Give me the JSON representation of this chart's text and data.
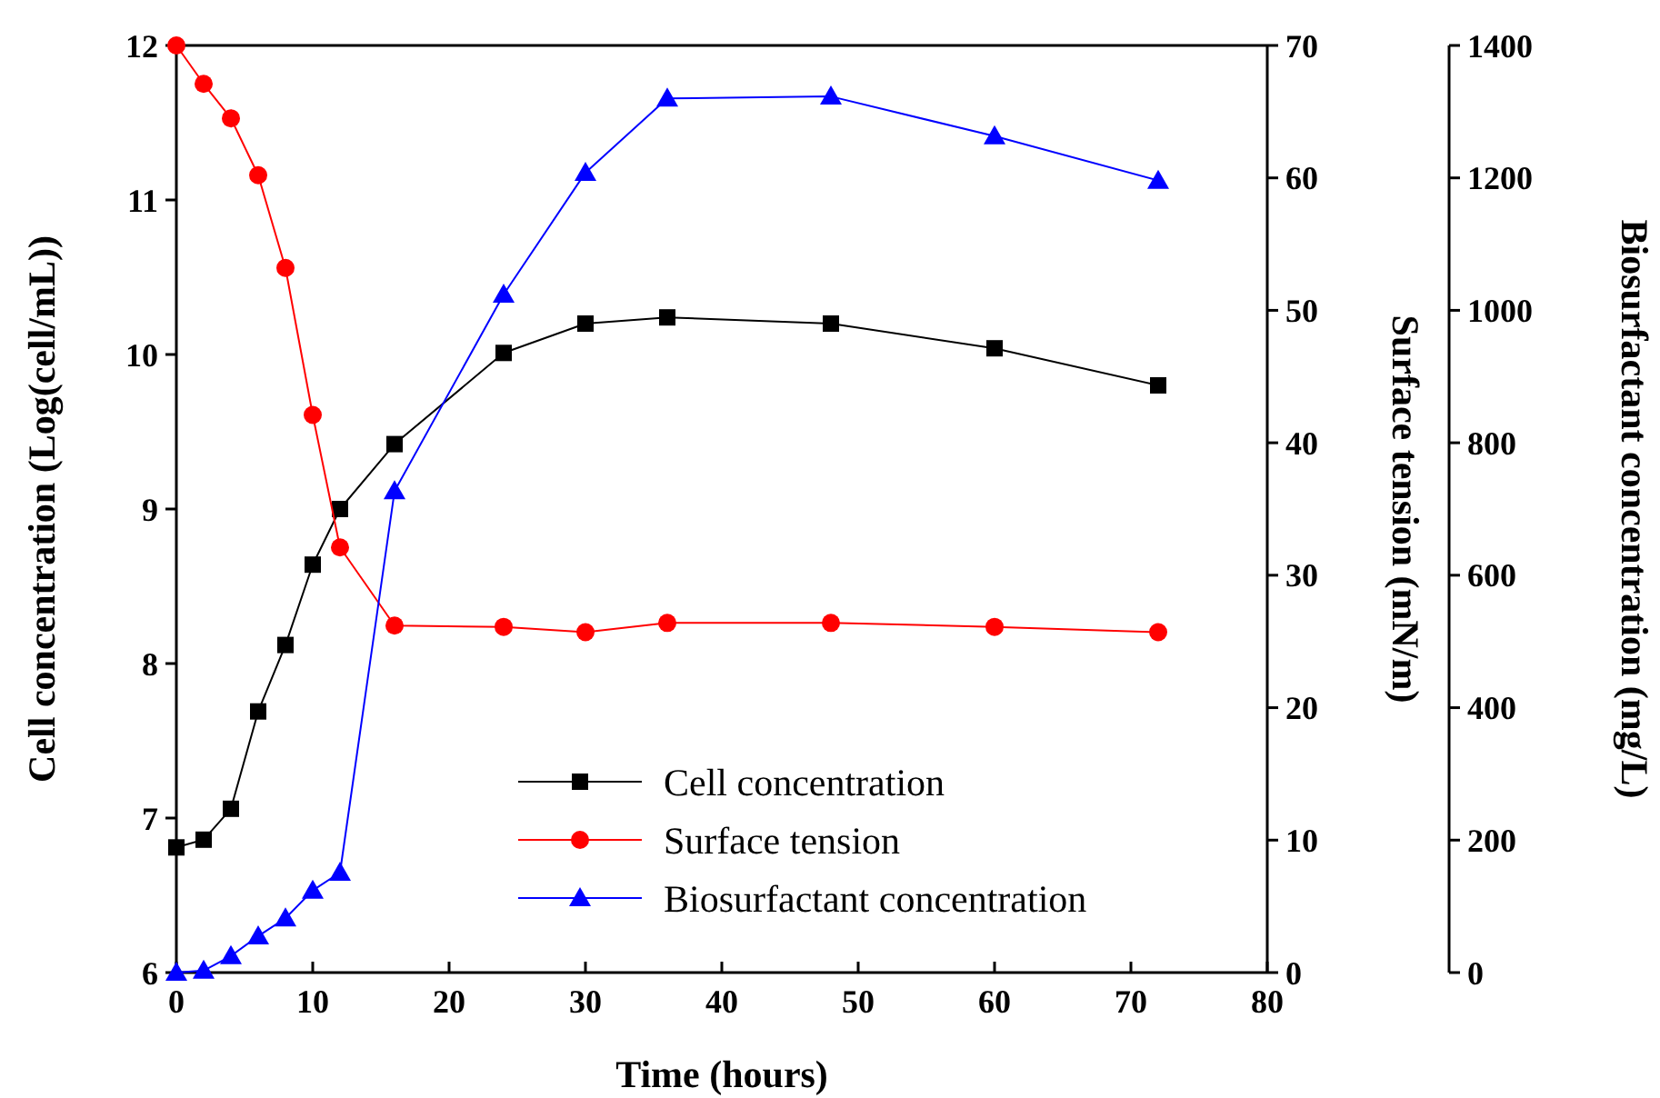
{
  "chart_data": {
    "type": "line",
    "xlabel": "Time (hours)",
    "ylabel": "Cell concentration (Log(cell/mL))",
    "y2label": "Surface tension (mN/m)",
    "y3label": "Biosurfactant concentration (mg/L)",
    "xlim": [
      0,
      80
    ],
    "xticks": [
      0,
      10,
      20,
      30,
      40,
      50,
      60,
      70,
      80
    ],
    "ylim": [
      6,
      12
    ],
    "yticks": [
      6,
      7,
      8,
      9,
      10,
      11,
      12
    ],
    "y2lim": [
      0,
      70
    ],
    "y2ticks": [
      0,
      10,
      20,
      30,
      40,
      50,
      60,
      70
    ],
    "y3lim": [
      0,
      1400
    ],
    "y3ticks": [
      0,
      200,
      400,
      600,
      800,
      1000,
      1200,
      1400
    ],
    "x": [
      0,
      2,
      4,
      6,
      8,
      10,
      12,
      16,
      24,
      30,
      36,
      48,
      60,
      72
    ],
    "legend": "bottom",
    "grid": false,
    "line_style": "solid",
    "series": [
      {
        "name": "Cell concentration",
        "color": "#000000",
        "marker": "square",
        "values": [
          6.81,
          6.86,
          7.06,
          7.69,
          8.12,
          8.64,
          9.0,
          9.42,
          10.01,
          10.2,
          10.24,
          10.2,
          10.04,
          9.8
        ]
      },
      {
        "name": "Surface tension",
        "color": "#ff0000",
        "marker": "circle",
        "axis": "y2",
        "values": [
          70,
          67.1,
          64.5,
          60.2,
          53.2,
          42.1,
          32.1,
          26.2,
          26.1,
          25.7,
          26.4,
          26.4,
          26.1,
          25.7
        ]
      },
      {
        "name": "Biosurfactant concentration",
        "color": "#0000ff",
        "marker": "triangle",
        "axis": "y3",
        "values": [
          0,
          3,
          25,
          55,
          82,
          124,
          151,
          727,
          1024,
          1208,
          1320,
          1323,
          1263,
          1196
        ]
      }
    ]
  }
}
